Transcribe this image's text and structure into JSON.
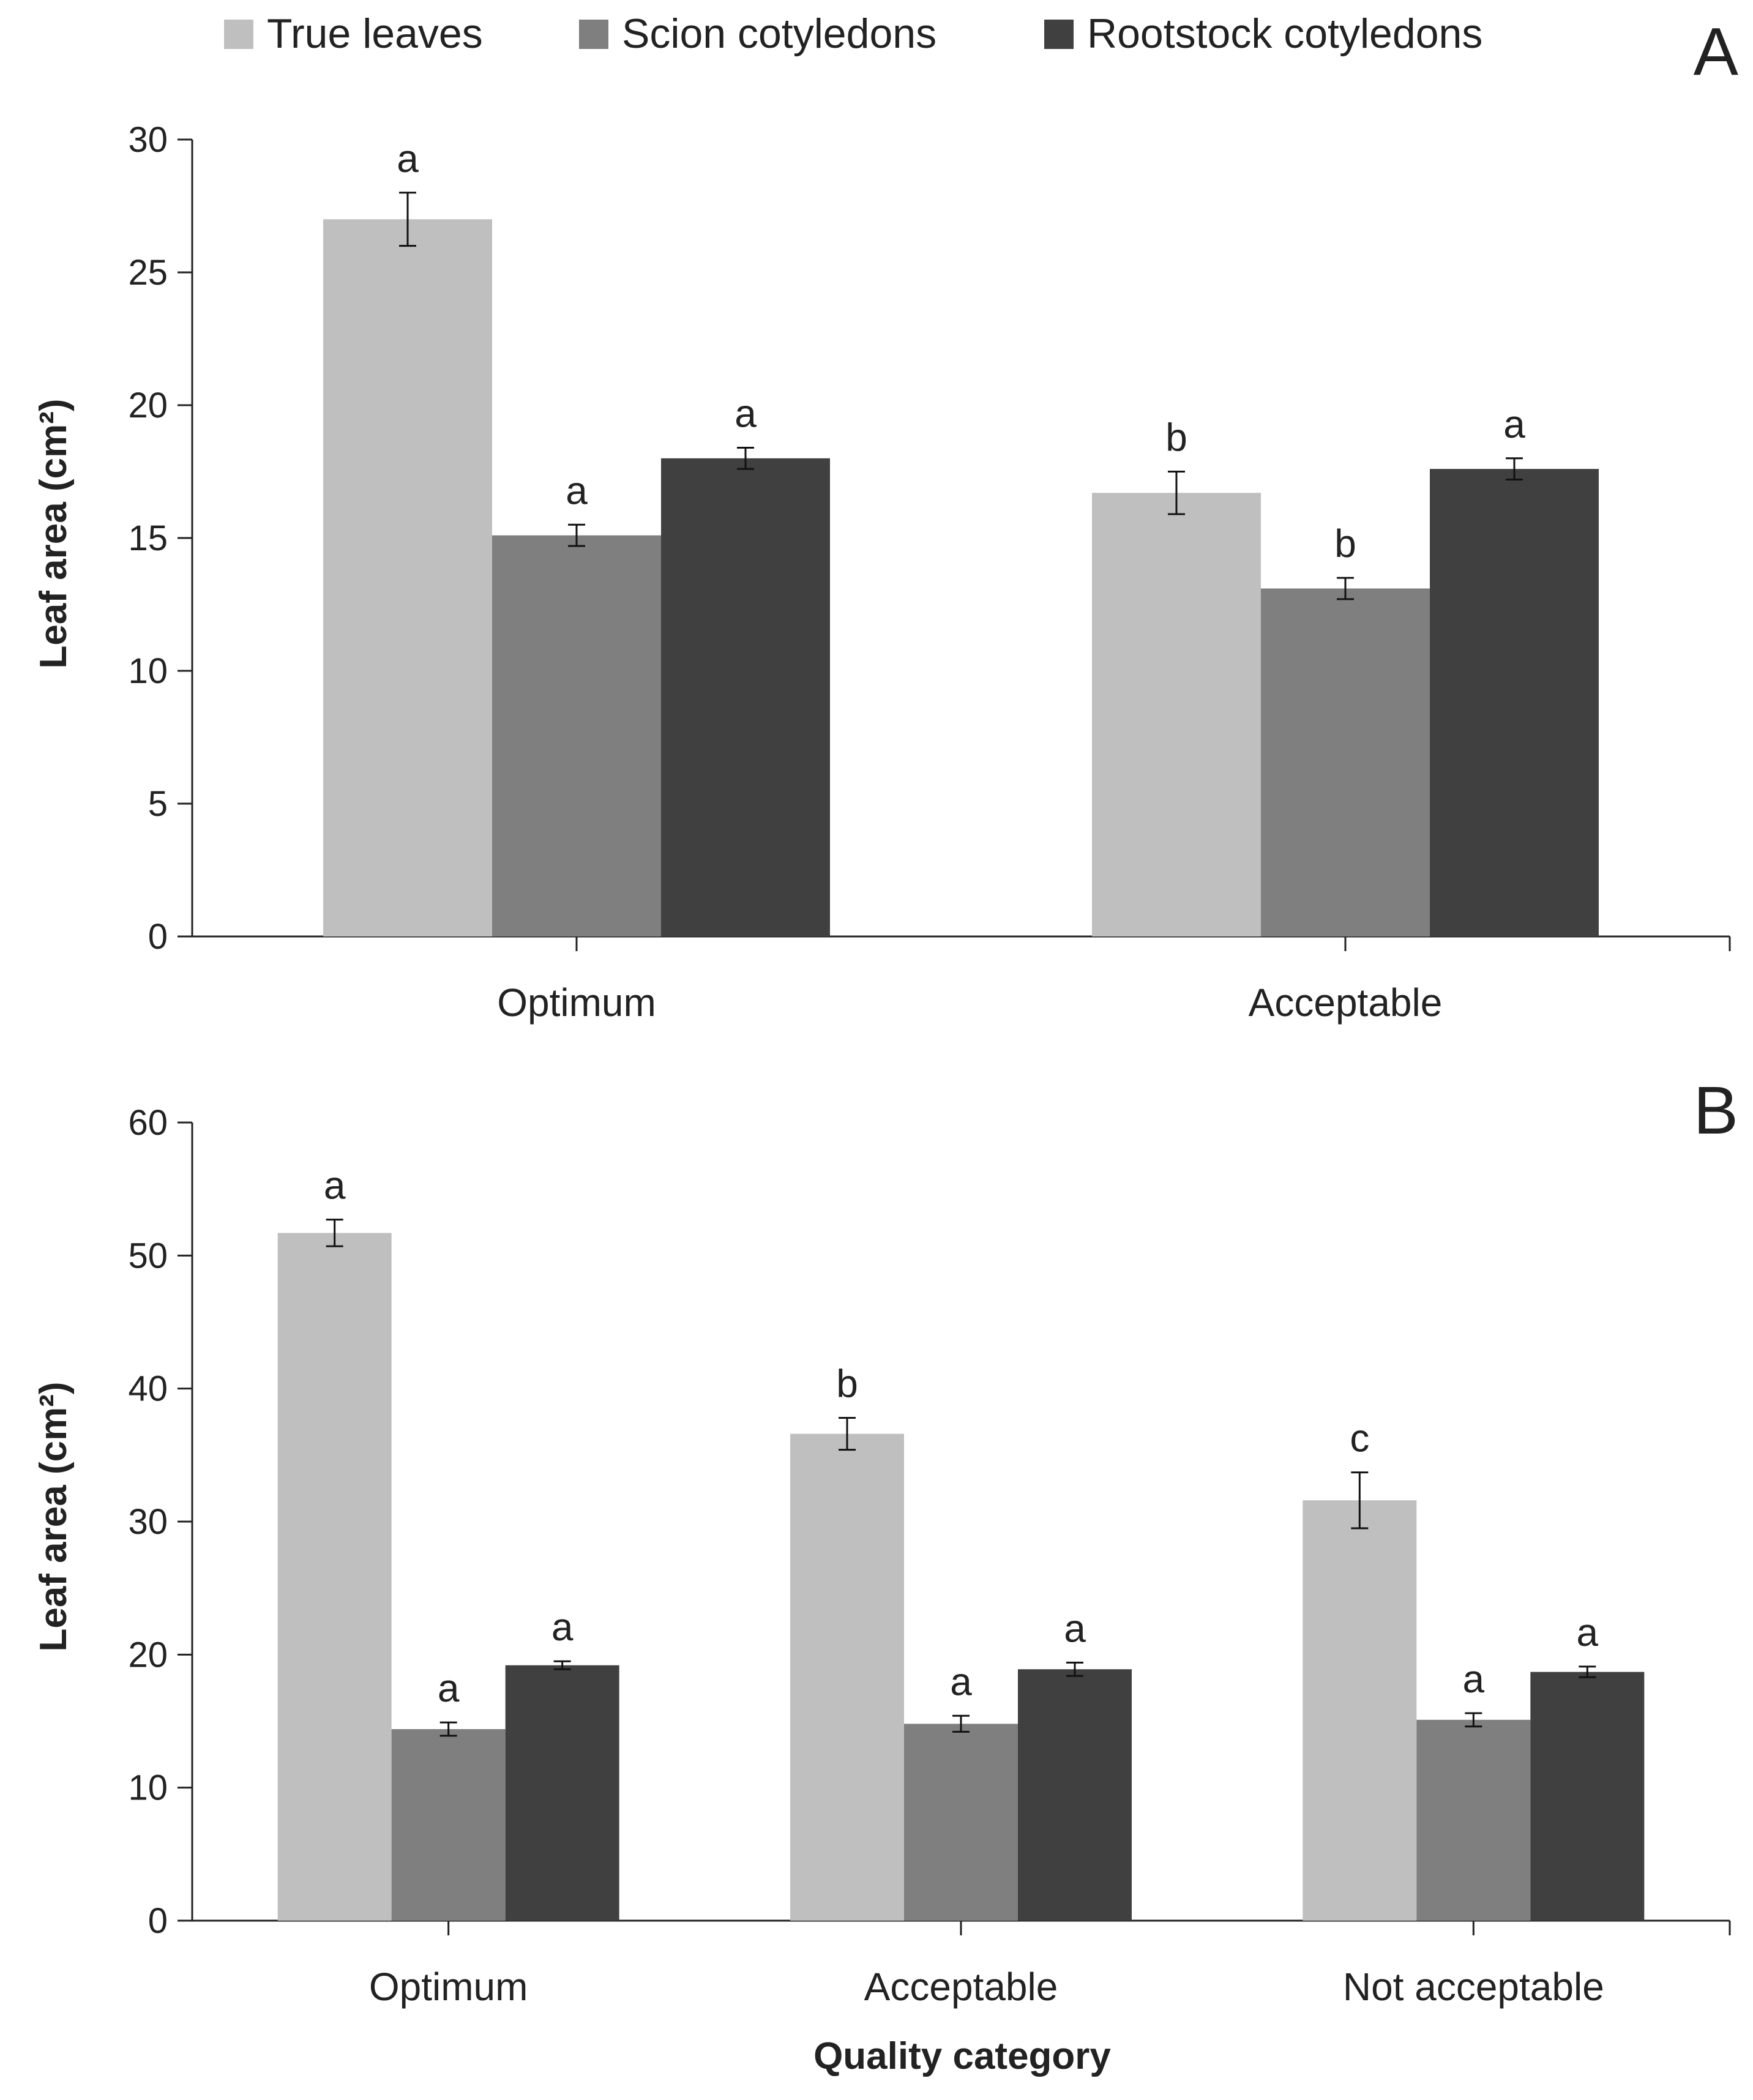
{
  "legend": [
    {
      "label": "True leaves",
      "color": "#bfbfbf"
    },
    {
      "label": "Scion cotyledons",
      "color": "#7f7f7f"
    },
    {
      "label": "Rootstock cotyledons",
      "color": "#404040"
    }
  ],
  "x_axis_title": "Quality category",
  "chart_data": [
    {
      "panel": "A",
      "type": "bar",
      "ylabel": "Leaf area (cm²)",
      "ylim": [
        0,
        30
      ],
      "yticks": [
        "0",
        "5",
        "10",
        "15",
        "20",
        "25",
        "30"
      ],
      "categories": [
        "Optimum",
        "Acceptable"
      ],
      "series": [
        {
          "name": "True leaves",
          "values": [
            27.0,
            16.7
          ],
          "errors": [
            1.0,
            0.8
          ],
          "letters": [
            "a",
            "b"
          ]
        },
        {
          "name": "Scion cotyledons",
          "values": [
            15.1,
            13.1
          ],
          "errors": [
            0.4,
            0.4
          ],
          "letters": [
            "a",
            "b"
          ]
        },
        {
          "name": "Rootstock cotyledons",
          "values": [
            18.0,
            17.6
          ],
          "errors": [
            0.4,
            0.4
          ],
          "letters": [
            "a",
            "a"
          ]
        }
      ]
    },
    {
      "panel": "B",
      "type": "bar",
      "ylabel": "Leaf area (cm²)",
      "xlabel": "Quality category",
      "ylim": [
        0,
        60
      ],
      "yticks": [
        "0",
        "10",
        "20",
        "30",
        "40",
        "50",
        "60"
      ],
      "categories": [
        "Optimum",
        "Acceptable",
        "Not acceptable"
      ],
      "series": [
        {
          "name": "True leaves",
          "values": [
            51.7,
            36.6,
            31.6
          ],
          "errors": [
            1.0,
            1.2,
            2.1
          ],
          "letters": [
            "a",
            "b",
            "c"
          ]
        },
        {
          "name": "Scion cotyledons",
          "values": [
            14.4,
            14.8,
            15.1
          ],
          "errors": [
            0.5,
            0.6,
            0.5
          ],
          "letters": [
            "a",
            "a",
            "a"
          ]
        },
        {
          "name": "Rootstock cotyledons",
          "values": [
            19.2,
            18.9,
            18.7
          ],
          "errors": [
            0.3,
            0.5,
            0.4
          ],
          "letters": [
            "a",
            "a",
            "a"
          ]
        }
      ]
    }
  ]
}
